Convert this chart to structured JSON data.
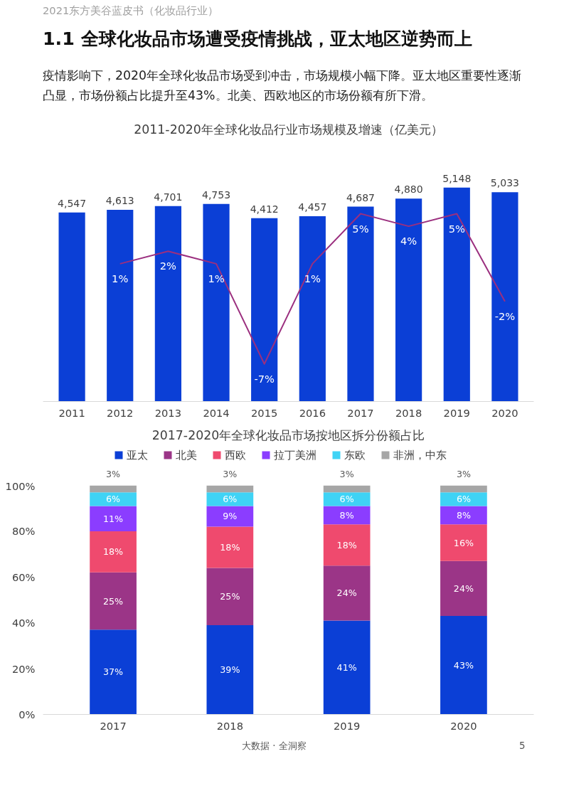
{
  "chart_data": [
    {
      "type": "bar",
      "title": "2011-2020年全球化妆品行业市场规模及增速（亿美元）",
      "annotations": [
        "2021东方美谷蓝皮书（化妆品行业）",
        "1.1 全球化妆品市场遭受疫情挑战，亚太地区逆势而上",
        "疫情影响下，2020年全球化妆品市场受到冲击，市场规模小幅下降。亚太地区重要性逐渐凸显，市场份额占比提升至43%。北美、西欧地区的市场份额有所下滑。"
      ],
      "categories": [
        "2011",
        "2012",
        "2013",
        "2014",
        "2015",
        "2016",
        "2017",
        "2018",
        "2019",
        "2020"
      ],
      "grid": false,
      "legend": false,
      "tick_labels": "x",
      "series": [
        {
          "type": "bar",
          "color": "#0b3fd6",
          "values": [
            4547,
            4613,
            4701,
            4753,
            4412,
            4457,
            4687,
            4880,
            5148,
            5033
          ],
          "value_labels": [
            "4,547",
            "4,613",
            "4,701",
            "4,753",
            "4,412",
            "4,457",
            "4,687",
            "4,880",
            "5,148",
            "5,033"
          ]
        },
        {
          "type": "line",
          "axis": "y2",
          "color": "#9b2f7f",
          "values": [
            null,
            1,
            2,
            1,
            -7,
            1,
            5,
            4,
            5,
            -2
          ],
          "value_labels": [
            null,
            "1%",
            "2%",
            "1%",
            "-7%",
            "1%",
            "5%",
            "4%",
            "5%",
            "-2%"
          ]
        }
      ]
    },
    {
      "type": "bar",
      "stacked": true,
      "title": "2017-2020年全球化妆品市场按地区拆分份额占比",
      "annotations": [
        "大数据 · 全洞察",
        "5"
      ],
      "categories": [
        "2017",
        "2018",
        "2019",
        "2020"
      ],
      "ylim": [
        0,
        100
      ],
      "yticks": [
        {
          "value": 0,
          "label": "0%"
        },
        {
          "value": 20,
          "label": "20%"
        },
        {
          "value": 40,
          "label": "40%"
        },
        {
          "value": 60,
          "label": "60%"
        },
        {
          "value": 80,
          "label": "80%"
        },
        {
          "value": 100,
          "label": "100%"
        }
      ],
      "grid": false,
      "legend": "top",
      "series": [
        {
          "name": "亚太",
          "color": "#0b3fd6",
          "values": [
            37,
            39,
            41,
            43
          ],
          "value_labels": [
            "37%",
            "39%",
            "41%",
            "43%"
          ]
        },
        {
          "name": "北美",
          "color": "#9b3587",
          "values": [
            25,
            25,
            24,
            24
          ],
          "value_labels": [
            "25%",
            "25%",
            "24%",
            "24%"
          ]
        },
        {
          "name": "西欧",
          "color": "#ef4a6e",
          "values": [
            18,
            18,
            18,
            16
          ],
          "value_labels": [
            "18%",
            "18%",
            "18%",
            "16%"
          ]
        },
        {
          "name": "拉丁美洲",
          "color": "#8b3dff",
          "values": [
            11,
            9,
            8,
            8
          ],
          "value_labels": [
            "11%",
            "9%",
            "8%",
            "8%"
          ]
        },
        {
          "name": "东欧",
          "color": "#3fd3f5",
          "values": [
            6,
            6,
            6,
            6
          ],
          "value_labels": [
            "6%",
            "6%",
            "6%",
            "6%"
          ]
        },
        {
          "name": "非洲，中东",
          "color": "#a6a6a6",
          "values": [
            3,
            3,
            3,
            3
          ],
          "value_labels": [
            "3%",
            "3%",
            "3%",
            "3%"
          ]
        }
      ]
    }
  ]
}
